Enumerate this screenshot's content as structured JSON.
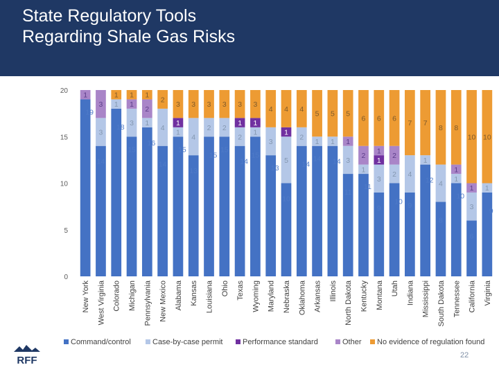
{
  "slide": {
    "title_line1": "State Regulatory Tools",
    "title_line2": "Regarding Shale Gas Risks",
    "page_number": "22",
    "logo_text": "RFF"
  },
  "colors": {
    "header_bg": "#1f3864",
    "command_control": "#4472c4",
    "case_by_case": "#b4c7e7",
    "performance": "#7030a0",
    "other": "#a985c8",
    "no_evidence": "#ed9b33"
  },
  "chart_data": {
    "type": "bar",
    "stacked": true,
    "title": "",
    "xlabel": "",
    "ylabel": "",
    "ylim": [
      0,
      20
    ],
    "yticks": [
      0,
      5,
      10,
      15,
      20
    ],
    "categories": [
      "New York",
      "West Virginia",
      "Colorado",
      "Michigan",
      "Pennsylvania",
      "New Mexico",
      "Alabama",
      "Kansas",
      "Louisiana",
      "Ohio",
      "Texas",
      "Wyoming",
      "Maryland",
      "Nebraska",
      "Oklahoma",
      "Arkansas",
      "Illinois",
      "North Dakota",
      "Kentucky",
      "Montana",
      "Utah",
      "Indiana",
      "Mississippi",
      "South Dakota",
      "Tennessee",
      "California",
      "Virginia"
    ],
    "series": [
      {
        "name": "Command/control",
        "key": "command_control",
        "values": [
          19,
          14,
          18,
          15,
          16,
          14,
          15,
          13,
          15,
          15,
          14,
          15,
          13,
          10,
          14,
          14,
          14,
          11,
          11,
          9,
          10,
          9,
          12,
          8,
          10,
          6,
          9
        ]
      },
      {
        "name": "Case-by-case permit",
        "key": "case_by_case",
        "values": [
          0,
          3,
          1,
          3,
          1,
          4,
          1,
          4,
          2,
          2,
          2,
          1,
          3,
          5,
          2,
          1,
          1,
          3,
          1,
          3,
          2,
          4,
          1,
          4,
          1,
          3,
          1
        ]
      },
      {
        "name": "Performance standard",
        "key": "performance",
        "values": [
          0,
          0,
          0,
          0,
          0,
          0,
          1,
          0,
          0,
          0,
          1,
          1,
          0,
          1,
          0,
          0,
          0,
          0,
          0,
          1,
          0,
          0,
          0,
          0,
          0,
          0,
          0
        ]
      },
      {
        "name": "Other",
        "key": "other",
        "values": [
          1,
          3,
          0,
          1,
          2,
          0,
          0,
          0,
          0,
          0,
          0,
          0,
          0,
          0,
          0,
          0,
          0,
          1,
          2,
          1,
          2,
          0,
          0,
          0,
          1,
          1,
          0
        ]
      },
      {
        "name": "No evidence of regulation found",
        "key": "no_evidence",
        "values": [
          0,
          0,
          1,
          1,
          1,
          2,
          3,
          3,
          3,
          3,
          3,
          3,
          4,
          4,
          4,
          5,
          5,
          5,
          6,
          6,
          6,
          7,
          7,
          8,
          8,
          10,
          10
        ]
      }
    ],
    "legend_position": "bottom",
    "grid": false
  }
}
